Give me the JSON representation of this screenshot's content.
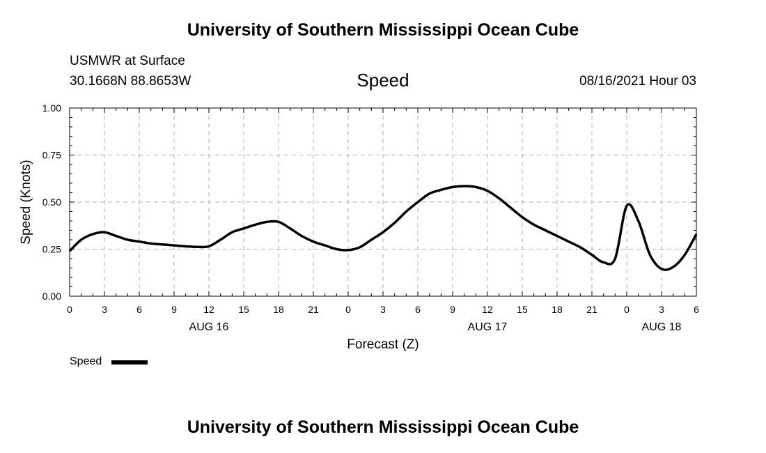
{
  "page": {
    "top_title": "University of Southern Mississippi Ocean Cube",
    "bottom_title": "University of Southern Mississippi Ocean Cube",
    "station": "USMWR at Surface",
    "coords": "30.1668N  88.8653W",
    "variable": "Speed",
    "issued": "08/16/2021 Hour 03"
  },
  "chart_data": {
    "type": "line",
    "xlabel": "Forecast (Z)",
    "ylabel": "Speed (Knots)",
    "x_unit": "hours",
    "x_ticks": [
      0,
      3,
      6,
      9,
      12,
      15,
      18,
      21,
      24,
      27,
      30,
      33,
      36,
      39,
      42,
      45,
      48,
      51,
      54
    ],
    "x_tick_labels": [
      "0",
      "3",
      "6",
      "9",
      "12",
      "15",
      "18",
      "21",
      "0",
      "3",
      "6",
      "9",
      "12",
      "15",
      "18",
      "21",
      "0",
      "3",
      "6"
    ],
    "date_labels": [
      {
        "x": 12,
        "label": "AUG 16"
      },
      {
        "x": 36,
        "label": "AUG 17"
      },
      {
        "x": 51,
        "label": "AUG 18"
      }
    ],
    "xlim": [
      0,
      54
    ],
    "ylim": [
      0,
      1
    ],
    "y_ticks": [
      0.0,
      0.25,
      0.5,
      0.75,
      1.0
    ],
    "y_tick_labels": [
      "0.00",
      "0.25",
      "0.50",
      "0.75",
      "1.00"
    ],
    "grid": true,
    "legend_position": "bottom-left",
    "series": [
      {
        "name": "Speed",
        "color": "#000000",
        "x": [
          0,
          1,
          2,
          3,
          4,
          5,
          6,
          7,
          8,
          9,
          10,
          11,
          12,
          13,
          14,
          15,
          16,
          17,
          18,
          19,
          20,
          21,
          22,
          23,
          24,
          25,
          26,
          27,
          28,
          29,
          30,
          31,
          32,
          33,
          34,
          35,
          36,
          37,
          38,
          39,
          40,
          41,
          42,
          43,
          44,
          45,
          46,
          47,
          48,
          49,
          50,
          51,
          52,
          53,
          54
        ],
        "y": [
          0.24,
          0.3,
          0.33,
          0.34,
          0.32,
          0.3,
          0.29,
          0.28,
          0.275,
          0.27,
          0.265,
          0.262,
          0.265,
          0.3,
          0.34,
          0.36,
          0.38,
          0.395,
          0.395,
          0.36,
          0.32,
          0.29,
          0.27,
          0.25,
          0.245,
          0.26,
          0.3,
          0.34,
          0.39,
          0.45,
          0.5,
          0.545,
          0.565,
          0.58,
          0.585,
          0.58,
          0.56,
          0.52,
          0.47,
          0.42,
          0.38,
          0.35,
          0.32,
          0.29,
          0.26,
          0.22,
          0.18,
          0.2,
          0.48,
          0.4,
          0.22,
          0.145,
          0.155,
          0.22,
          0.33
        ]
      }
    ]
  }
}
